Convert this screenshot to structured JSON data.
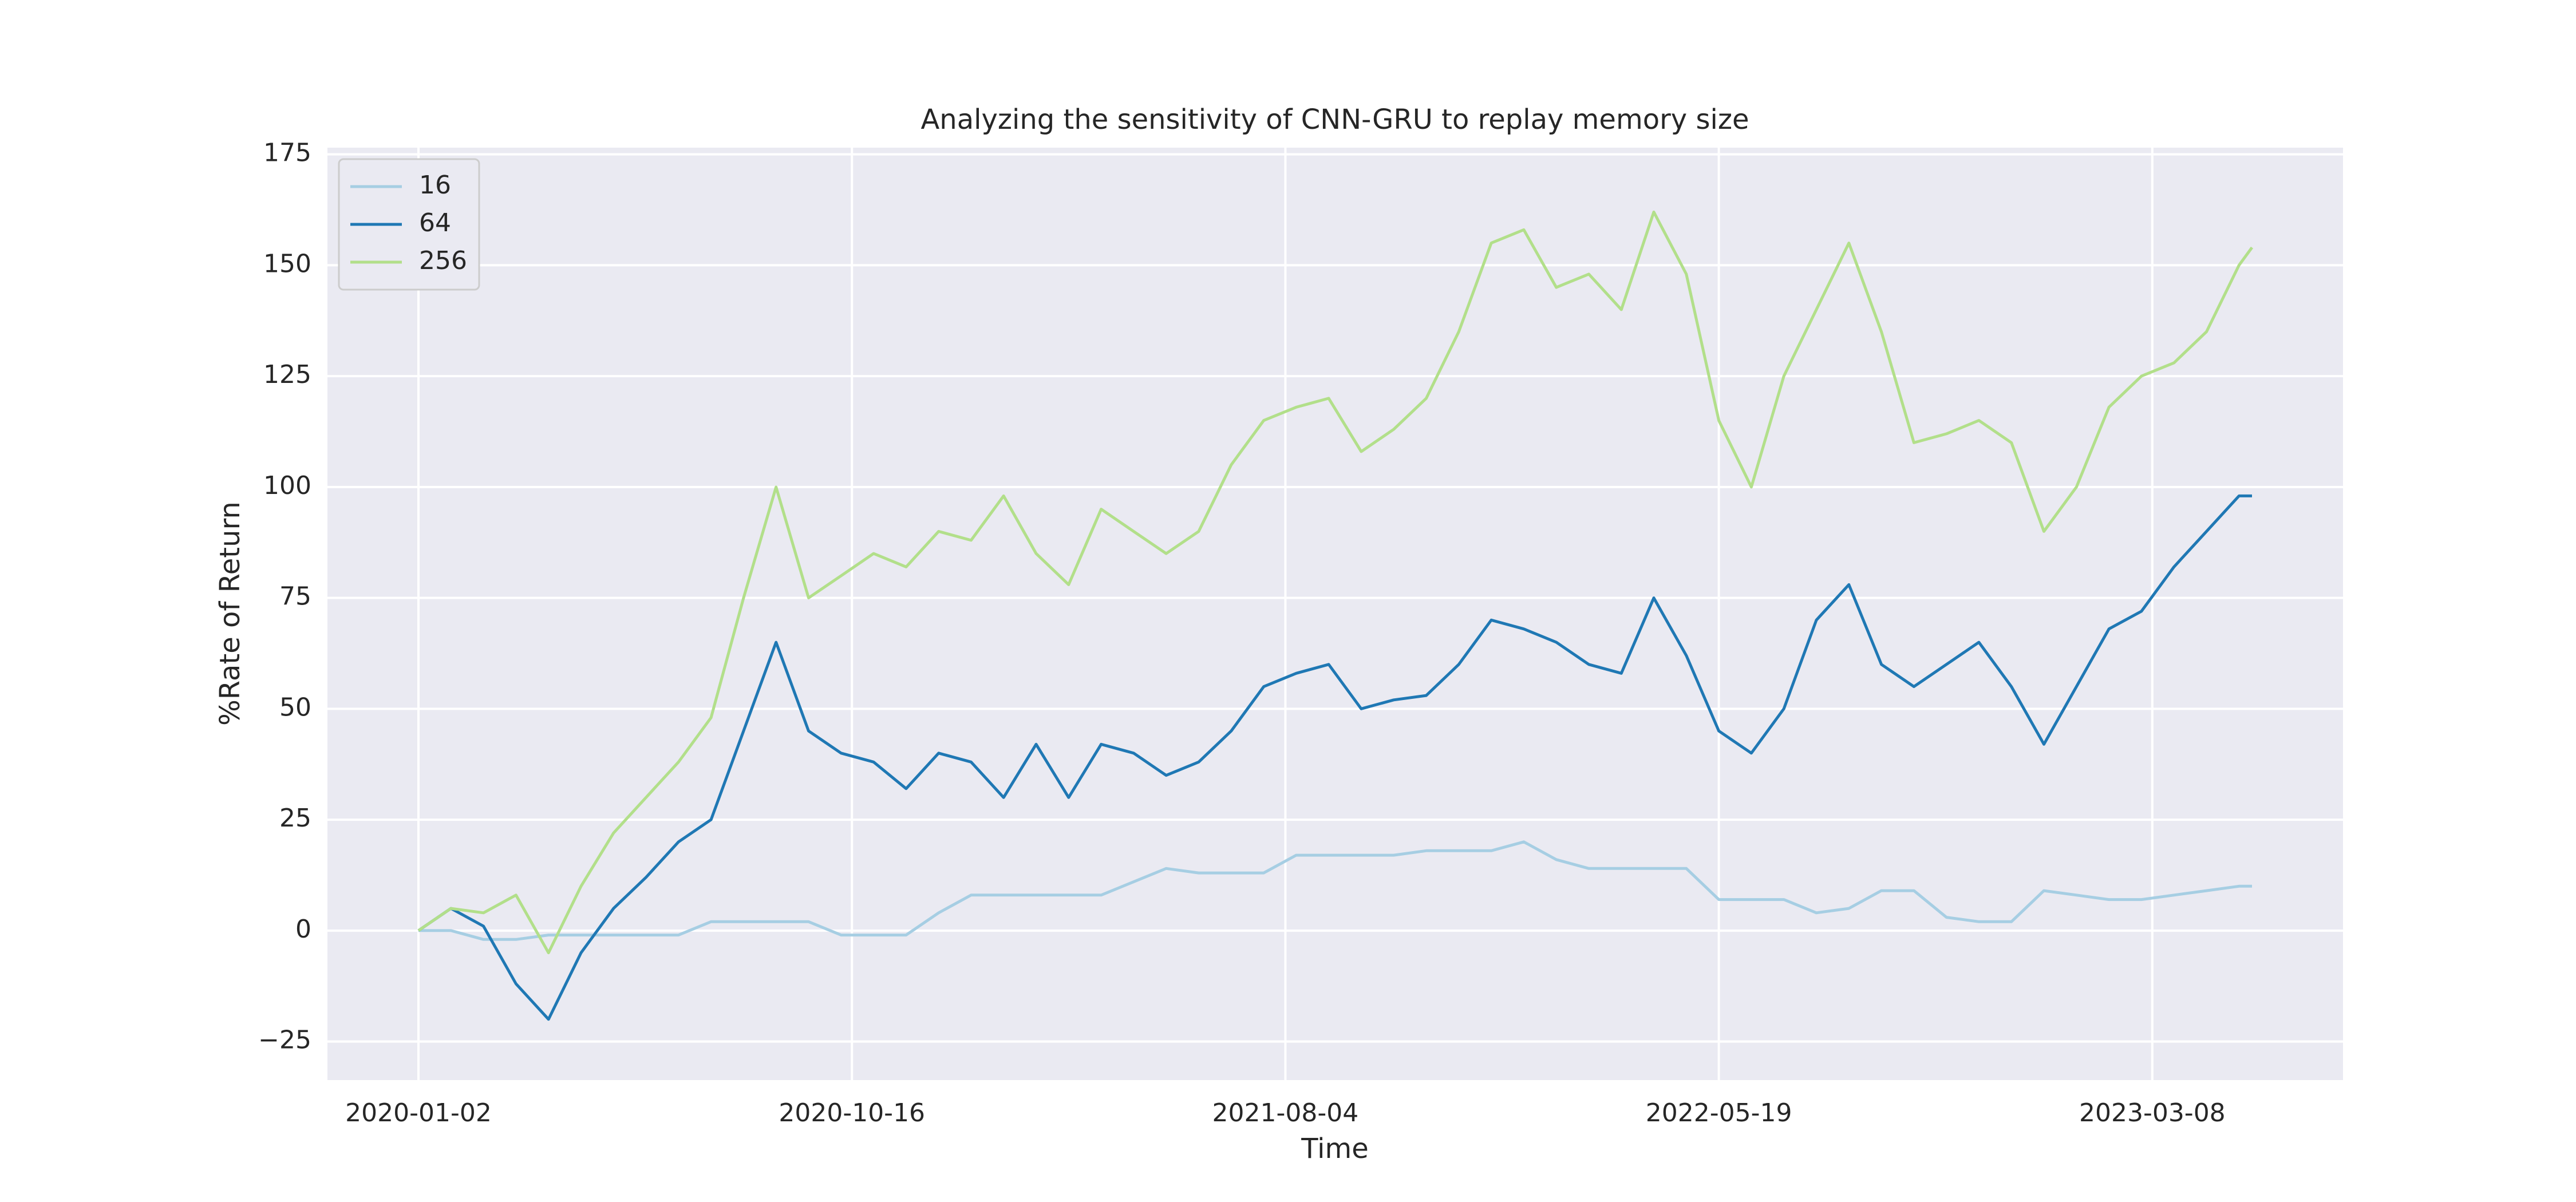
{
  "chart_data": {
    "type": "line",
    "title": "Analyzing the sensitivity of CNN-GRU to replay memory size",
    "xlabel": "Time",
    "ylabel": "%Rate of Return",
    "x": [
      0,
      15,
      30,
      45,
      60,
      75,
      90,
      105,
      120,
      135,
      150,
      165,
      180,
      195,
      210,
      225,
      240,
      255,
      270,
      285,
      300,
      315,
      330,
      345,
      360,
      375,
      390,
      405,
      420,
      435,
      450,
      465,
      480,
      495,
      510,
      525,
      540,
      555,
      570,
      585,
      600,
      615,
      630,
      645,
      660,
      675,
      690,
      705,
      720,
      735,
      750,
      765,
      780,
      795,
      810,
      825,
      840,
      846
    ],
    "series": [
      {
        "name": "16",
        "color": "#a6cee3",
        "values": [
          0,
          0,
          -2,
          -2,
          -1,
          -1,
          -1,
          -1,
          -1,
          2,
          2,
          2,
          2,
          -1,
          -1,
          -1,
          4,
          8,
          8,
          8,
          8,
          8,
          11,
          14,
          13,
          13,
          13,
          17,
          17,
          17,
          17,
          18,
          18,
          18,
          20,
          16,
          14,
          14,
          14,
          14,
          7,
          7,
          7,
          4,
          5,
          9,
          9,
          3,
          2,
          2,
          9,
          8,
          7,
          7,
          8,
          9,
          10,
          10
        ]
      },
      {
        "name": "64",
        "color": "#1f78b4",
        "values": [
          0,
          5,
          1,
          -12,
          -20,
          -5,
          5,
          12,
          20,
          25,
          45,
          65,
          45,
          40,
          38,
          32,
          40,
          38,
          30,
          42,
          30,
          42,
          40,
          35,
          38,
          45,
          55,
          58,
          60,
          50,
          52,
          53,
          60,
          70,
          68,
          65,
          60,
          58,
          75,
          62,
          45,
          40,
          50,
          70,
          78,
          60,
          55,
          60,
          65,
          55,
          42,
          55,
          68,
          72,
          82,
          90,
          98,
          98
        ]
      },
      {
        "name": "256",
        "color": "#b2df8a",
        "values": [
          0,
          5,
          4,
          8,
          -5,
          10,
          22,
          30,
          38,
          48,
          75,
          100,
          75,
          80,
          85,
          82,
          90,
          88,
          98,
          85,
          78,
          95,
          90,
          85,
          90,
          105,
          115,
          118,
          120,
          108,
          113,
          120,
          135,
          155,
          158,
          145,
          148,
          140,
          162,
          148,
          115,
          100,
          125,
          140,
          155,
          135,
          110,
          112,
          115,
          110,
          90,
          100,
          118,
          125,
          128,
          135,
          150,
          154
        ]
      }
    ],
    "xlim": [
      -42,
      888
    ],
    "xticks": [
      {
        "value": 0,
        "label": "2020-01-02"
      },
      {
        "value": 200,
        "label": "2020-10-16"
      },
      {
        "value": 400,
        "label": "2021-08-04"
      },
      {
        "value": 600,
        "label": "2022-05-19"
      },
      {
        "value": 800,
        "label": "2023-03-08"
      }
    ],
    "ylim": [
      -33.7,
      176.5
    ],
    "yticks": [
      {
        "value": -25,
        "label": "−25"
      },
      0,
      25,
      50,
      75,
      100,
      125,
      150,
      175
    ],
    "grid": true,
    "legend": "upper left"
  }
}
